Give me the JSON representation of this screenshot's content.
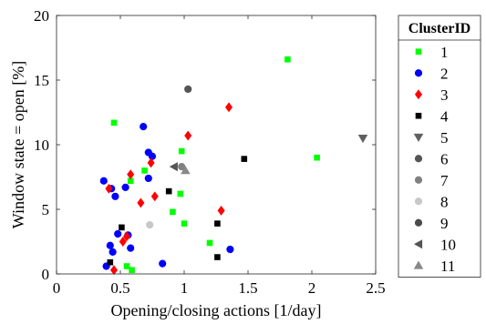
{
  "chart_data": {
    "type": "scatter",
    "xlabel": "Opening/closing actions [1/day]",
    "ylabel": "Window state = open [%]",
    "xlim": [
      0,
      2.5
    ],
    "ylim": [
      0,
      20
    ],
    "xticks": [
      0,
      0.5,
      1,
      1.5,
      2,
      2.5
    ],
    "xtick_labels": [
      "0",
      "0.5",
      "1",
      "1.5",
      "2",
      "2.5"
    ],
    "yticks": [
      0,
      5,
      10,
      15,
      20
    ],
    "ytick_labels": [
      "0",
      "5",
      "10",
      "15",
      "20"
    ],
    "grid": false,
    "legend": {
      "title": "ClusterID",
      "placement": "outside-right"
    },
    "series": [
      {
        "name": "1",
        "color": "#00ff00",
        "marker": "square",
        "points": [
          [
            0.45,
            11.7
          ],
          [
            1.81,
            16.6
          ],
          [
            2.04,
            9.0
          ],
          [
            0.69,
            8.0
          ],
          [
            0.98,
            9.5
          ],
          [
            0.97,
            6.2
          ],
          [
            0.91,
            4.8
          ],
          [
            1.0,
            3.9
          ],
          [
            1.2,
            2.4
          ],
          [
            0.55,
            0.6
          ],
          [
            0.59,
            0.3
          ],
          [
            0.58,
            7.2
          ]
        ]
      },
      {
        "name": "2",
        "color": "#0000ff",
        "marker": "circle",
        "points": [
          [
            0.37,
            7.2
          ],
          [
            0.43,
            6.6
          ],
          [
            0.46,
            6.0
          ],
          [
            0.54,
            6.7
          ],
          [
            0.68,
            11.4
          ],
          [
            0.72,
            9.4
          ],
          [
            0.75,
            9.1
          ],
          [
            0.72,
            7.4
          ],
          [
            0.39,
            0.6
          ],
          [
            0.42,
            2.2
          ],
          [
            0.44,
            1.7
          ],
          [
            0.48,
            3.1
          ],
          [
            0.56,
            3.0
          ],
          [
            0.58,
            2.0
          ],
          [
            0.83,
            0.8
          ],
          [
            1.36,
            1.9
          ]
        ]
      },
      {
        "name": "3",
        "color": "#ff0000",
        "marker": "diamond",
        "points": [
          [
            0.41,
            6.6
          ],
          [
            0.58,
            7.7
          ],
          [
            0.66,
            5.5
          ],
          [
            0.74,
            8.6
          ],
          [
            0.77,
            6.0
          ],
          [
            1.03,
            10.7
          ],
          [
            1.29,
            4.9
          ],
          [
            1.35,
            12.9
          ],
          [
            0.52,
            2.5
          ],
          [
            0.55,
            2.9
          ],
          [
            0.45,
            0.3
          ]
        ]
      },
      {
        "name": "4",
        "color": "#000000",
        "marker": "square",
        "points": [
          [
            0.51,
            3.6
          ],
          [
            0.42,
            0.9
          ],
          [
            0.88,
            6.4
          ],
          [
            1.26,
            3.9
          ],
          [
            1.26,
            1.3
          ],
          [
            1.47,
            8.9
          ]
        ]
      },
      {
        "name": "5",
        "color": "#606060",
        "marker": "triangle-down",
        "points": [
          [
            2.4,
            10.5
          ]
        ]
      },
      {
        "name": "6",
        "color": "#555555",
        "marker": "circle",
        "points": [
          [
            1.03,
            14.3
          ]
        ]
      },
      {
        "name": "7",
        "color": "#808080",
        "marker": "circle",
        "points": [
          [
            0.98,
            8.3
          ]
        ]
      },
      {
        "name": "8",
        "color": "#c8c8c8",
        "marker": "circle",
        "points": [
          [
            0.73,
            3.8
          ]
        ]
      },
      {
        "name": "9",
        "color": "#4a4a4a",
        "marker": "circle",
        "points": []
      },
      {
        "name": "10",
        "color": "#555555",
        "marker": "triangle-left",
        "points": [
          [
            0.92,
            8.3
          ]
        ]
      },
      {
        "name": "11",
        "color": "#888888",
        "marker": "triangle-up",
        "points": [
          [
            1.01,
            8.0
          ]
        ]
      }
    ]
  }
}
